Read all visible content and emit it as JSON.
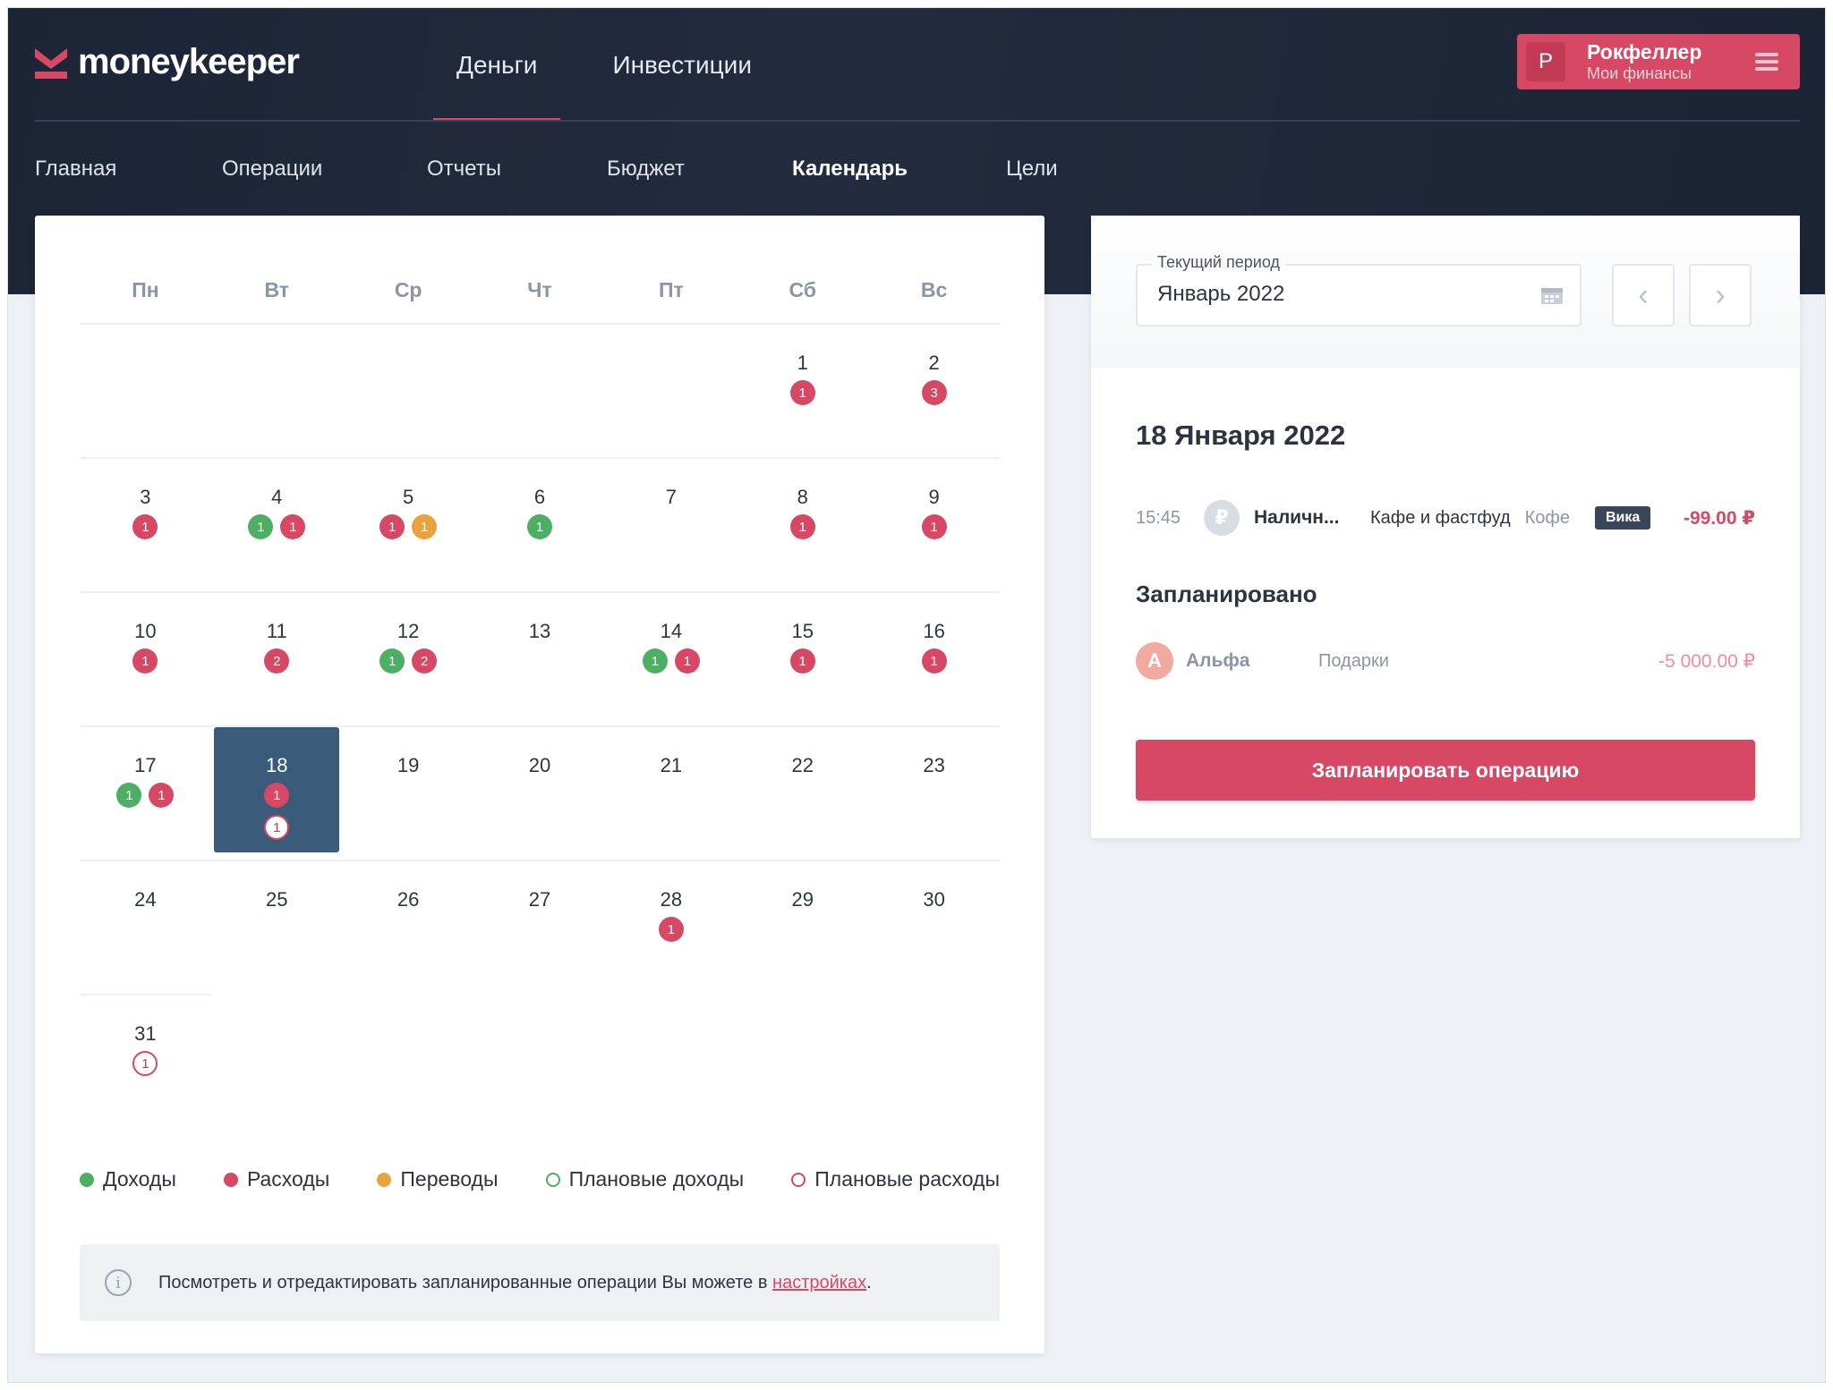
{
  "app": {
    "brand": "moneykeeper",
    "brand_color": "#d64863"
  },
  "topnav": {
    "items": [
      {
        "label": "Деньги",
        "active": true
      },
      {
        "label": "Инвестиции",
        "active": false
      }
    ]
  },
  "user": {
    "initial": "Р",
    "name": "Рокфеллер",
    "subtitle": "Мои финансы"
  },
  "subnav": {
    "items": [
      {
        "label": "Главная",
        "active": false
      },
      {
        "label": "Операции",
        "active": false
      },
      {
        "label": "Отчеты",
        "active": false
      },
      {
        "label": "Бюджет",
        "active": false
      },
      {
        "label": "Календарь",
        "active": true
      },
      {
        "label": "Цели",
        "active": false
      }
    ]
  },
  "calendar": {
    "weekdays": [
      "Пн",
      "Вт",
      "Ср",
      "Чт",
      "Пт",
      "Сб",
      "Вс"
    ],
    "start_offset": 5,
    "selected_day": 18,
    "days": [
      {
        "day": "1",
        "badges": [
          {
            "kind": "expense",
            "count": "1"
          }
        ]
      },
      {
        "day": "2",
        "badges": [
          {
            "kind": "expense",
            "count": "3"
          }
        ]
      },
      {
        "day": "3",
        "badges": [
          {
            "kind": "expense",
            "count": "1"
          }
        ]
      },
      {
        "day": "4",
        "badges": [
          {
            "kind": "income",
            "count": "1"
          },
          {
            "kind": "expense",
            "count": "1"
          }
        ]
      },
      {
        "day": "5",
        "badges": [
          {
            "kind": "expense",
            "count": "1"
          },
          {
            "kind": "transfer",
            "count": "1"
          }
        ]
      },
      {
        "day": "6",
        "badges": [
          {
            "kind": "income",
            "count": "1"
          }
        ]
      },
      {
        "day": "7",
        "badges": []
      },
      {
        "day": "8",
        "badges": [
          {
            "kind": "expense",
            "count": "1"
          }
        ]
      },
      {
        "day": "9",
        "badges": [
          {
            "kind": "expense",
            "count": "1"
          }
        ]
      },
      {
        "day": "10",
        "badges": [
          {
            "kind": "expense",
            "count": "1"
          }
        ]
      },
      {
        "day": "11",
        "badges": [
          {
            "kind": "expense",
            "count": "2"
          }
        ]
      },
      {
        "day": "12",
        "badges": [
          {
            "kind": "income",
            "count": "1"
          },
          {
            "kind": "expense",
            "count": "2"
          }
        ]
      },
      {
        "day": "13",
        "badges": []
      },
      {
        "day": "14",
        "badges": [
          {
            "kind": "income",
            "count": "1"
          },
          {
            "kind": "expense",
            "count": "1"
          }
        ]
      },
      {
        "day": "15",
        "badges": [
          {
            "kind": "expense",
            "count": "1"
          }
        ]
      },
      {
        "day": "16",
        "badges": [
          {
            "kind": "expense",
            "count": "1"
          }
        ]
      },
      {
        "day": "17",
        "badges": [
          {
            "kind": "income",
            "count": "1"
          },
          {
            "kind": "expense",
            "count": "1"
          }
        ]
      },
      {
        "day": "18",
        "badges": [
          {
            "kind": "expense",
            "count": "1"
          }
        ],
        "planned": [
          {
            "kind": "planned-expense",
            "count": "1"
          }
        ]
      },
      {
        "day": "19",
        "badges": []
      },
      {
        "day": "20",
        "badges": []
      },
      {
        "day": "21",
        "badges": []
      },
      {
        "day": "22",
        "badges": []
      },
      {
        "day": "23",
        "badges": []
      },
      {
        "day": "24",
        "badges": []
      },
      {
        "day": "25",
        "badges": []
      },
      {
        "day": "26",
        "badges": []
      },
      {
        "day": "27",
        "badges": []
      },
      {
        "day": "28",
        "badges": [
          {
            "kind": "expense",
            "count": "1"
          }
        ]
      },
      {
        "day": "29",
        "badges": []
      },
      {
        "day": "30",
        "badges": []
      },
      {
        "day": "31",
        "badges": [
          {
            "kind": "planned-expense",
            "count": "1"
          }
        ]
      }
    ],
    "colors": {
      "income": "#4caf63",
      "expense": "#d64863",
      "transfer": "#e8a33d",
      "selected": "#3b5b7a"
    }
  },
  "legend": [
    {
      "label": "Доходы",
      "kind": "income",
      "style": "dot",
      "color": "#4caf63"
    },
    {
      "label": "Расходы",
      "kind": "expense",
      "style": "dot",
      "color": "#d64863"
    },
    {
      "label": "Переводы",
      "kind": "transfer",
      "style": "dot",
      "color": "#e8a33d"
    },
    {
      "label": "Плановые доходы",
      "kind": "planned-income",
      "style": "ring",
      "color": "#4caf63"
    },
    {
      "label": "Плановые расходы",
      "kind": "planned-expense",
      "style": "ring",
      "color": "#d64863"
    }
  ],
  "info": {
    "text": "Посмотреть и отредактировать запланированные операции Вы можете в ",
    "link": "настройках",
    "suffix": "."
  },
  "period": {
    "label": "Текущий период",
    "value": "Январь 2022",
    "prev_icon": "chevron-left-icon",
    "next_icon": "chevron-right-icon"
  },
  "details": {
    "date_title": "18 Января 2022",
    "operation": {
      "time": "15:45",
      "coin": "₽",
      "account": "Наличн...",
      "category": "Кафе и фастфуд",
      "note": "Кофе",
      "tag": "Вика",
      "amount": "-99.00 ₽"
    },
    "planned_title": "Запланировано",
    "planned": {
      "avatar": "А",
      "account": "Альфа",
      "category": "Подарки",
      "amount": "-5 000.00 ₽"
    },
    "plan_button": "Запланировать операцию"
  }
}
